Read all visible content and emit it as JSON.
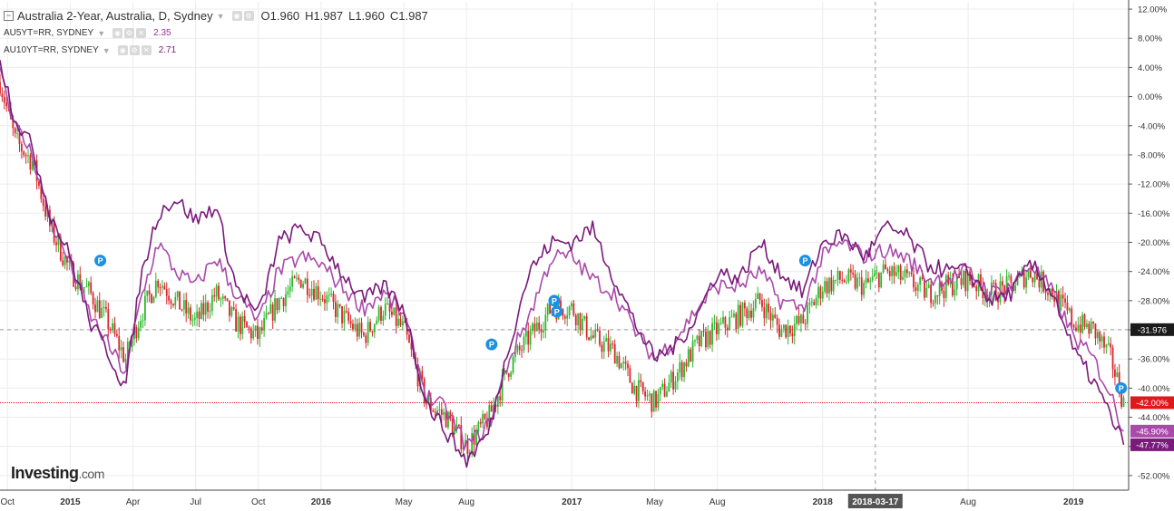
{
  "legend": {
    "main_title": "Australia 2-Year, Australia, D, Sydney",
    "ohlc": {
      "o": "O1.960",
      "h": "H1.987",
      "l": "L1.960",
      "c": "C1.987"
    },
    "series2_label": "AU5YT=RR, SYDNEY",
    "series2_value": "2.35",
    "series3_label": "AU10YT=RR, SYDNEY",
    "series3_value": "2.71"
  },
  "watermark": {
    "brand": "Investing",
    "suffix": ".com"
  },
  "colors": {
    "up": "#2db82d",
    "down": "#d9262b",
    "au5": "#a94aa9",
    "au10": "#7a1a7a",
    "grid": "#ececec",
    "crosshair_price": "#1b1b1b",
    "red_level": "#e0181b",
    "note_marker": "#1e90e0"
  },
  "crosshair": {
    "date_label": "2018-03-17",
    "price_label": "-31.976"
  },
  "price_labels": {
    "red": "-42.00%",
    "au5": "-45.90%",
    "au10": "-47.77%"
  },
  "note_marker_glyph": "P",
  "chart_data": {
    "type": "line",
    "y_unit": "% change",
    "ylim": [
      -54,
      13
    ],
    "y_ticks": [
      "12.00%",
      "8.00%",
      "4.00%",
      "0.00%",
      "-4.00%",
      "-8.00%",
      "-12.00%",
      "-16.00%",
      "-20.00%",
      "-24.00%",
      "-28.00%",
      "-32.00%",
      "-36.00%",
      "-40.00%",
      "-44.00%",
      "-48.00%",
      "-52.00%"
    ],
    "y_tick_values": [
      12,
      8,
      4,
      0,
      -4,
      -8,
      -12,
      -16,
      -20,
      -24,
      -28,
      -32,
      -36,
      -40,
      -44,
      -48,
      -52
    ],
    "xlim": [
      2014.72,
      2019.22
    ],
    "x_ticks": [
      {
        "label": "Oct",
        "t": 2014.75
      },
      {
        "label": "2015",
        "t": 2015.0
      },
      {
        "label": "Apr",
        "t": 2015.25
      },
      {
        "label": "Jul",
        "t": 2015.5
      },
      {
        "label": "Oct",
        "t": 2015.75
      },
      {
        "label": "2016",
        "t": 2016.0
      },
      {
        "label": "May",
        "t": 2016.33
      },
      {
        "label": "Aug",
        "t": 2016.58
      },
      {
        "label": "2017",
        "t": 2017.0
      },
      {
        "label": "May",
        "t": 2017.33
      },
      {
        "label": "Aug",
        "t": 2017.58
      },
      {
        "label": "2018",
        "t": 2018.0
      },
      {
        "label": "Aug",
        "t": 2018.58
      },
      {
        "label": "2019",
        "t": 2019.0
      }
    ],
    "x_tick_bold": [
      "2015",
      "2016",
      "2017",
      "2018",
      "2019"
    ],
    "crosshair_t": 2018.21,
    "crosshair_y": -31.976,
    "red_level_y": -42.0,
    "series": [
      {
        "name": "Australia 2-Year",
        "style": "candles",
        "t": [
          2014.72,
          2014.78,
          2014.85,
          2014.92,
          2015.0,
          2015.08,
          2015.15,
          2015.22,
          2015.28,
          2015.35,
          2015.42,
          2015.5,
          2015.58,
          2015.66,
          2015.75,
          2015.83,
          2015.92,
          2016.0,
          2016.08,
          2016.17,
          2016.25,
          2016.33,
          2016.42,
          2016.5,
          2016.58,
          2016.67,
          2016.75,
          2016.83,
          2016.92,
          2017.0,
          2017.08,
          2017.17,
          2017.25,
          2017.33,
          2017.42,
          2017.5,
          2017.58,
          2017.67,
          2017.75,
          2017.83,
          2017.92,
          2018.0,
          2018.08,
          2018.17,
          2018.25,
          2018.33,
          2018.42,
          2018.5,
          2018.58,
          2018.67,
          2018.75,
          2018.83,
          2018.92,
          2019.0,
          2019.08,
          2019.15,
          2019.2
        ],
        "values": [
          2,
          -6,
          -9,
          -18,
          -24,
          -27,
          -31,
          -36,
          -30,
          -25,
          -28,
          -31,
          -27,
          -31,
          -33,
          -28,
          -25,
          -27,
          -30,
          -33,
          -29,
          -32,
          -42,
          -44,
          -48,
          -44,
          -37,
          -33,
          -29,
          -29,
          -33,
          -35,
          -40,
          -42,
          -38,
          -34,
          -32,
          -30,
          -28,
          -32,
          -31,
          -26,
          -25,
          -26,
          -24,
          -25,
          -27,
          -26,
          -25,
          -27,
          -26,
          -24,
          -27,
          -31,
          -32,
          -36,
          -42
        ]
      },
      {
        "name": "AU5YT=RR, SYDNEY",
        "style": "line",
        "t": [
          2014.72,
          2014.78,
          2014.85,
          2014.92,
          2015.0,
          2015.08,
          2015.15,
          2015.22,
          2015.28,
          2015.35,
          2015.42,
          2015.5,
          2015.58,
          2015.66,
          2015.75,
          2015.83,
          2015.92,
          2016.0,
          2016.08,
          2016.17,
          2016.25,
          2016.33,
          2016.42,
          2016.5,
          2016.58,
          2016.67,
          2016.75,
          2016.83,
          2016.92,
          2017.0,
          2017.08,
          2017.17,
          2017.25,
          2017.33,
          2017.42,
          2017.5,
          2017.58,
          2017.67,
          2017.75,
          2017.83,
          2017.92,
          2018.0,
          2018.08,
          2018.17,
          2018.25,
          2018.33,
          2018.42,
          2018.5,
          2018.58,
          2018.67,
          2018.75,
          2018.83,
          2018.92,
          2019.0,
          2019.08,
          2019.15,
          2019.2
        ],
        "values": [
          4,
          -4,
          -8,
          -17,
          -23,
          -30,
          -34,
          -38,
          -28,
          -20,
          -24,
          -26,
          -22,
          -27,
          -31,
          -24,
          -22,
          -23,
          -26,
          -29,
          -27,
          -30,
          -41,
          -43,
          -48,
          -45,
          -36,
          -30,
          -22,
          -22,
          -25,
          -27,
          -32,
          -36,
          -33,
          -29,
          -26,
          -26,
          -24,
          -28,
          -29,
          -22,
          -20,
          -22,
          -21,
          -22,
          -25,
          -25,
          -24,
          -27,
          -26,
          -23,
          -27,
          -33,
          -36,
          -41,
          -45.9
        ]
      },
      {
        "name": "AU10YT=RR, SYDNEY",
        "style": "line",
        "t": [
          2014.72,
          2014.78,
          2014.85,
          2014.92,
          2015.0,
          2015.08,
          2015.15,
          2015.22,
          2015.28,
          2015.35,
          2015.42,
          2015.5,
          2015.58,
          2015.66,
          2015.75,
          2015.83,
          2015.92,
          2016.0,
          2016.08,
          2016.17,
          2016.25,
          2016.33,
          2016.42,
          2016.5,
          2016.58,
          2016.67,
          2016.75,
          2016.83,
          2016.92,
          2017.0,
          2017.08,
          2017.17,
          2017.25,
          2017.33,
          2017.42,
          2017.5,
          2017.58,
          2017.67,
          2017.75,
          2017.83,
          2017.92,
          2018.0,
          2018.08,
          2018.17,
          2018.25,
          2018.33,
          2018.42,
          2018.5,
          2018.58,
          2018.67,
          2018.75,
          2018.83,
          2018.92,
          2019.0,
          2019.08,
          2019.15,
          2019.2
        ],
        "values": [
          5,
          -3,
          -7,
          -16,
          -22,
          -31,
          -35,
          -40,
          -25,
          -16,
          -14,
          -17,
          -15,
          -26,
          -30,
          -20,
          -18,
          -20,
          -24,
          -28,
          -26,
          -29,
          -42,
          -46,
          -50,
          -46,
          -34,
          -24,
          -20,
          -20,
          -18,
          -25,
          -31,
          -36,
          -34,
          -30,
          -24,
          -25,
          -20,
          -24,
          -27,
          -20,
          -19,
          -22,
          -18,
          -19,
          -23,
          -24,
          -24,
          -28,
          -27,
          -23,
          -27,
          -35,
          -39,
          -44,
          -47.77
        ]
      }
    ]
  }
}
